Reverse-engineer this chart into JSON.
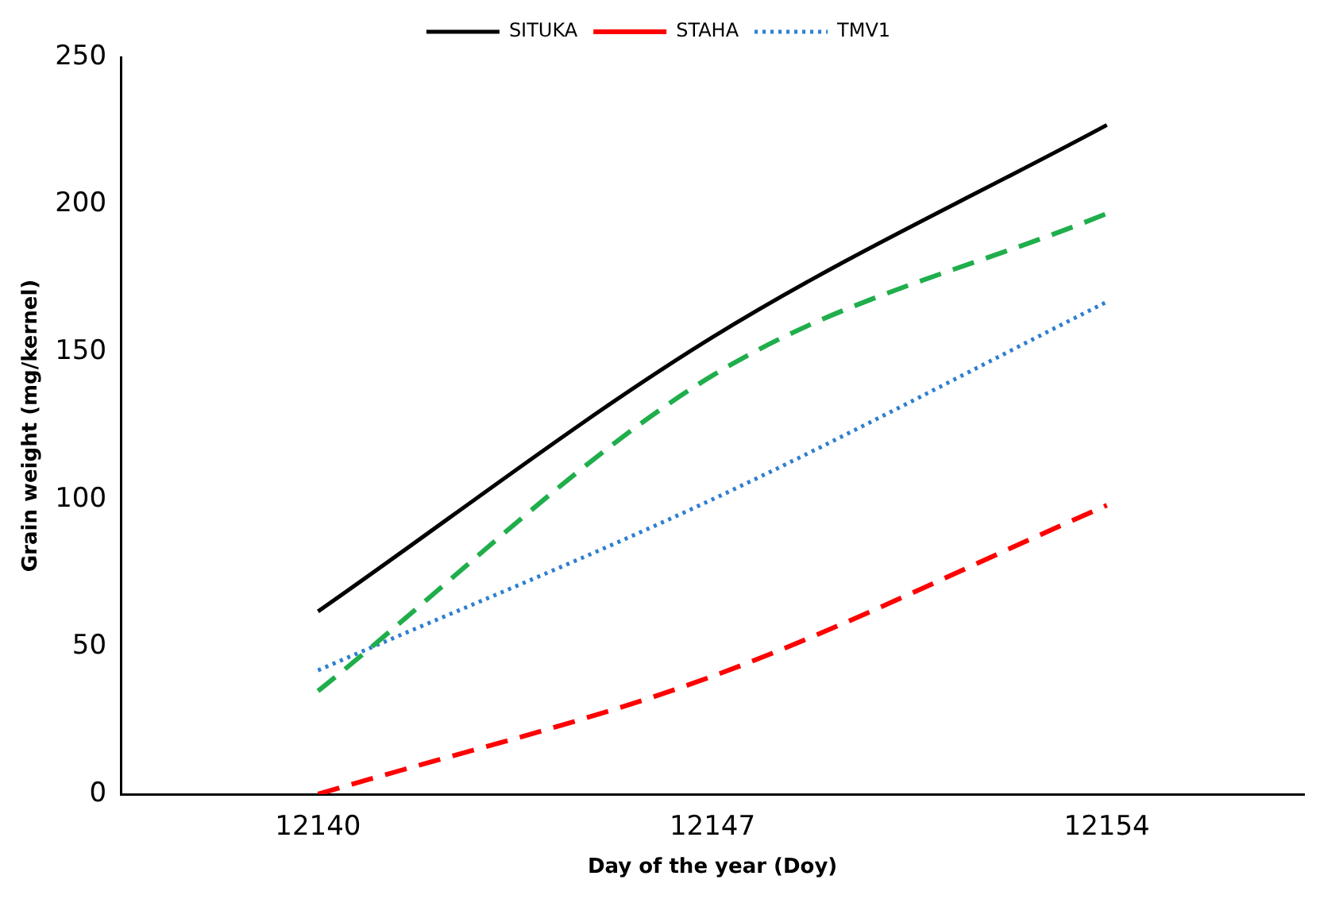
{
  "chart_data": {
    "type": "line",
    "xlabel": "Day of the year (Doy)",
    "ylabel": "Grain weight (mg/kernel)",
    "categories": [
      "12140",
      "12147",
      "12154"
    ],
    "series": [
      {
        "color": "#1fae4b",
        "line_style": "dashed",
        "values": [
          35,
          142,
          197
        ]
      },
      {
        "name": "SITUKA",
        "color": "#000000",
        "line_style": "solid",
        "values": [
          62,
          155,
          227
        ]
      },
      {
        "name": "STAHA",
        "color": "#ff0000",
        "line_style": "dashed",
        "values": [
          0,
          40,
          98
        ]
      },
      {
        "name": "TMV1",
        "color": "#2e7fd0",
        "line_style": "dotted",
        "values": [
          42,
          100,
          167
        ]
      }
    ],
    "ylim": [
      0,
      250
    ],
    "yticks": [
      0,
      50,
      100,
      150,
      200,
      250
    ],
    "grid": false,
    "legend": "top",
    "marker": "none"
  }
}
